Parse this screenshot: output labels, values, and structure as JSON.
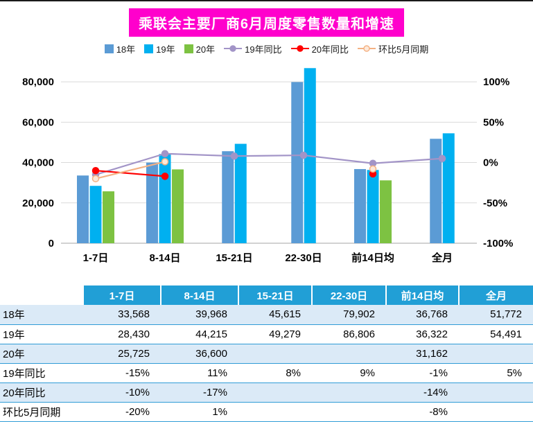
{
  "chart": {
    "title": "乘联会主要厂商6月周度零售数量和增速"
  },
  "chart_data": {
    "type": "bar+line",
    "title": "乘联会主要厂商6月周度零售数量和增速",
    "categories": [
      "1-7日",
      "8-14日",
      "15-21日",
      "22-30日",
      "前14日均",
      "全月"
    ],
    "bar_series": [
      {
        "name": "18年",
        "color": "#5B9BD5",
        "values": [
          33568,
          39968,
          45615,
          79902,
          36768,
          51772
        ]
      },
      {
        "name": "19年",
        "color": "#00B0F0",
        "values": [
          28430,
          44215,
          49279,
          86806,
          36322,
          54491
        ]
      },
      {
        "name": "20年",
        "color": "#7DC242",
        "values": [
          25725,
          36600,
          null,
          null,
          31162,
          null
        ]
      }
    ],
    "line_series": [
      {
        "name": "19年同比",
        "color": "#A294C7",
        "marker_fill": "#A294C7",
        "values_pct": [
          -15,
          11,
          8,
          9,
          -1,
          5
        ]
      },
      {
        "name": "20年同比",
        "color": "#FF0000",
        "marker_fill": "#FF0000",
        "values_pct": [
          -10,
          -17,
          null,
          null,
          -14,
          null
        ]
      },
      {
        "name": "环比5月同期",
        "color": "#F4B183",
        "marker_fill": "#FDE9D9",
        "values_pct": [
          -20,
          1,
          null,
          null,
          -8,
          null
        ]
      }
    ],
    "left_axis": {
      "ticks": [
        "0",
        "20,000",
        "40,000",
        "60,000",
        "80,000"
      ],
      "tick_values": [
        0,
        20000,
        40000,
        60000,
        80000
      ],
      "min": 0,
      "max": 90000
    },
    "right_axis": {
      "ticks": [
        "-100%",
        "-50%",
        "0%",
        "50%",
        "100%"
      ],
      "tick_values": [
        -100,
        -50,
        0,
        50,
        100
      ],
      "pct_range": [
        -100,
        100
      ],
      "left_equiv": [
        0,
        80000
      ]
    },
    "grid": true,
    "legend_position": "top"
  },
  "table": {
    "header": [
      "",
      "1-7日",
      "8-14日",
      "15-21日",
      "22-30日",
      "前14日均",
      "全月"
    ],
    "rows": [
      {
        "label": "18年",
        "cells": [
          "33,568",
          "39,968",
          "45,615",
          "79,902",
          "36,768",
          "51,772"
        ]
      },
      {
        "label": "19年",
        "cells": [
          "28,430",
          "44,215",
          "49,279",
          "86,806",
          "36,322",
          "54,491"
        ]
      },
      {
        "label": "20年",
        "cells": [
          "25,725",
          "36,600",
          "",
          "",
          "31,162",
          ""
        ]
      },
      {
        "label": "19年同比",
        "cells": [
          "-15%",
          "11%",
          "8%",
          "9%",
          "-1%",
          "5%"
        ]
      },
      {
        "label": "20年同比",
        "cells": [
          "-10%",
          "-17%",
          "",
          "",
          "-14%",
          ""
        ]
      },
      {
        "label": "环比5月同期",
        "cells": [
          "-20%",
          "1%",
          "",
          "",
          "-8%",
          ""
        ]
      }
    ]
  },
  "colors": {
    "title_bg": "#FF00CC",
    "table_header_bg": "#219FD6",
    "table_stripe_bg": "#DBEAF7",
    "table_border": "#2E9BD6",
    "gridline": "#D9D9D9",
    "baseline": "#A6A6A6"
  }
}
